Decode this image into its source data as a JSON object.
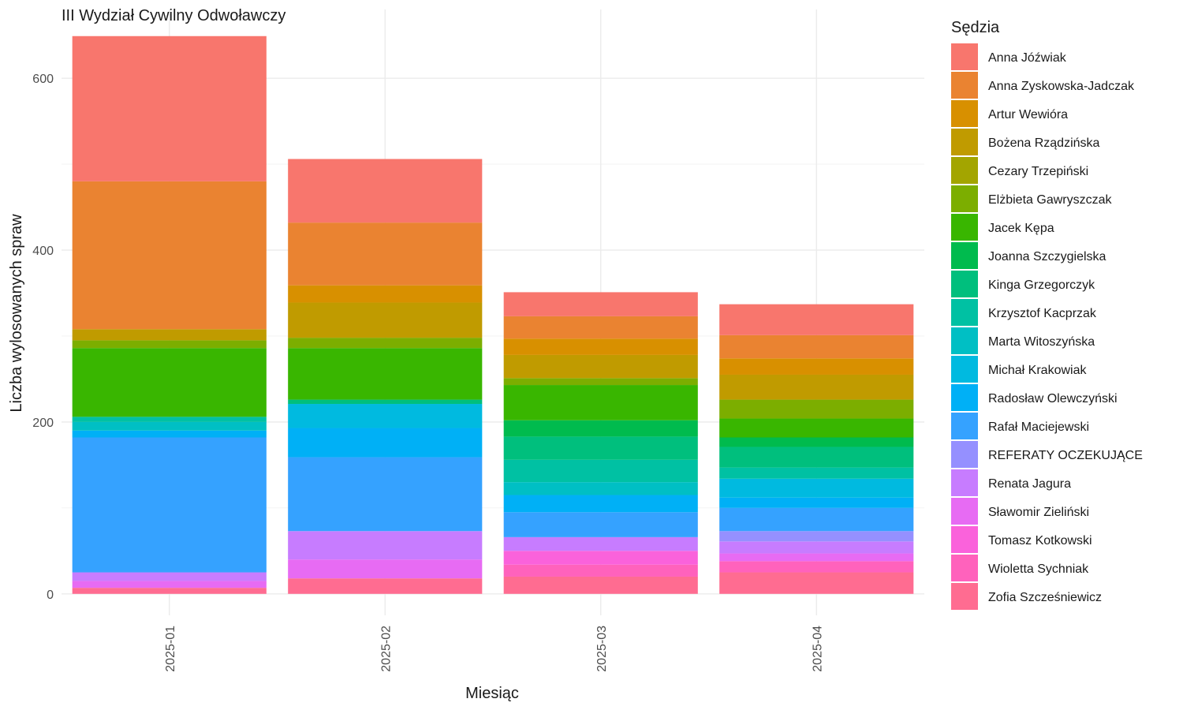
{
  "chart_data": {
    "type": "bar",
    "stacked": true,
    "title": "III Wydział Cywilny Odwoławczy",
    "xlabel": "Miesiąc",
    "ylabel": "Liczba wylosowanych spraw",
    "ylim": [
      -25,
      680
    ],
    "yticks": [
      0,
      200,
      400,
      600
    ],
    "grid": true,
    "legend_title": "Sędzia",
    "legend_position": "right",
    "categories": [
      "2025-01",
      "2025-02",
      "2025-03",
      "2025-04"
    ],
    "series": [
      {
        "name": "Anna Jóźwiak",
        "color": "#F8766D",
        "values": [
          169,
          74,
          28,
          36
        ]
      },
      {
        "name": "Anna Zyskowska-Jadczak",
        "color": "#EA8331",
        "values": [
          172,
          73,
          26,
          27
        ]
      },
      {
        "name": "Artur Wewióra",
        "color": "#D89000",
        "values": [
          0,
          20,
          19,
          19
        ]
      },
      {
        "name": "Bożena Rządzińska",
        "color": "#C09B00",
        "values": [
          13,
          41,
          27,
          29
        ]
      },
      {
        "name": "Cezary Trzepiński",
        "color": "#A3A500",
        "values": [
          0,
          0,
          0,
          0
        ]
      },
      {
        "name": "Elżbieta Gawryszczak",
        "color": "#7CAE00",
        "values": [
          9,
          12,
          8,
          22
        ]
      },
      {
        "name": "Jacek Kępa",
        "color": "#39B600",
        "values": [
          80,
          60,
          41,
          22
        ]
      },
      {
        "name": "Joanna Szczygielska",
        "color": "#00BB4E",
        "values": [
          0,
          0,
          19,
          11
        ]
      },
      {
        "name": "Kinga Grzegorczyk",
        "color": "#00BF7D",
        "values": [
          0,
          5,
          27,
          24
        ]
      },
      {
        "name": "Krzysztof Kacprzak",
        "color": "#00C1A3",
        "values": [
          6,
          0,
          26,
          13
        ]
      },
      {
        "name": "Marta Witoszyńska",
        "color": "#00BFC4",
        "values": [
          10,
          0,
          15,
          0
        ]
      },
      {
        "name": "Michał Krakowiak",
        "color": "#00BAE0",
        "values": [
          0,
          28,
          0,
          22
        ]
      },
      {
        "name": "Radosław Olewczyński",
        "color": "#00B0F6",
        "values": [
          8,
          34,
          20,
          12
        ]
      },
      {
        "name": "Rafał Maciejewski",
        "color": "#35A2FF",
        "values": [
          157,
          86,
          29,
          27
        ]
      },
      {
        "name": "REFERATY OCZEKUJĄCE",
        "color": "#9590FF",
        "values": [
          0,
          0,
          0,
          12
        ]
      },
      {
        "name": "Renata Jagura",
        "color": "#C77CFF",
        "values": [
          10,
          33,
          16,
          14
        ]
      },
      {
        "name": "Sławomir Zieliński",
        "color": "#E76BF3",
        "values": [
          8,
          22,
          0,
          9
        ]
      },
      {
        "name": "Tomasz Kotkowski",
        "color": "#FA62DB",
        "values": [
          0,
          0,
          16,
          0
        ]
      },
      {
        "name": "Wioletta Sychniak",
        "color": "#FF62BC",
        "values": [
          0,
          0,
          14,
          13
        ]
      },
      {
        "name": "Zofia Szcześniewicz",
        "color": "#FF6C91",
        "values": [
          7,
          18,
          20,
          25
        ]
      }
    ]
  }
}
